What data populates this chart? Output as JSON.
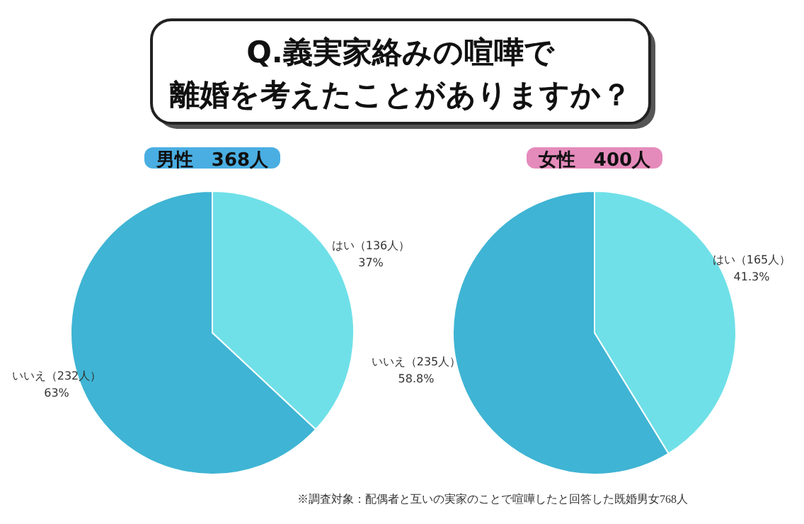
{
  "chart_data": [
    {
      "type": "other",
      "title": "Q.義実家絡みの喧嘩で",
      "subtitle": "離婚を考えたことがありますか？"
    },
    {
      "type": "pie",
      "subtitle": "男性　368人",
      "categories": [
        "はい",
        "いいえ"
      ],
      "values": [
        136,
        232
      ],
      "colors": [
        "#6fe0e8",
        "#3fb4d4"
      ],
      "value_labels": [
        "（136人）\n37%",
        "（232人）\n63%"
      ]
    },
    {
      "type": "pie",
      "subtitle": "女性　400人",
      "categories": [
        "はい",
        "いいえ"
      ],
      "values": [
        165,
        235
      ],
      "colors": [
        "#6fe0e8",
        "#3fb4d4"
      ],
      "value_labels": [
        "（165人）\n41.3%",
        "（235人）\n58.8%"
      ],
      "annotations": [
        "※調査対象：配偶者と互いの実家のことで喧嘩したと回答した既婚男女768人"
      ]
    }
  ]
}
